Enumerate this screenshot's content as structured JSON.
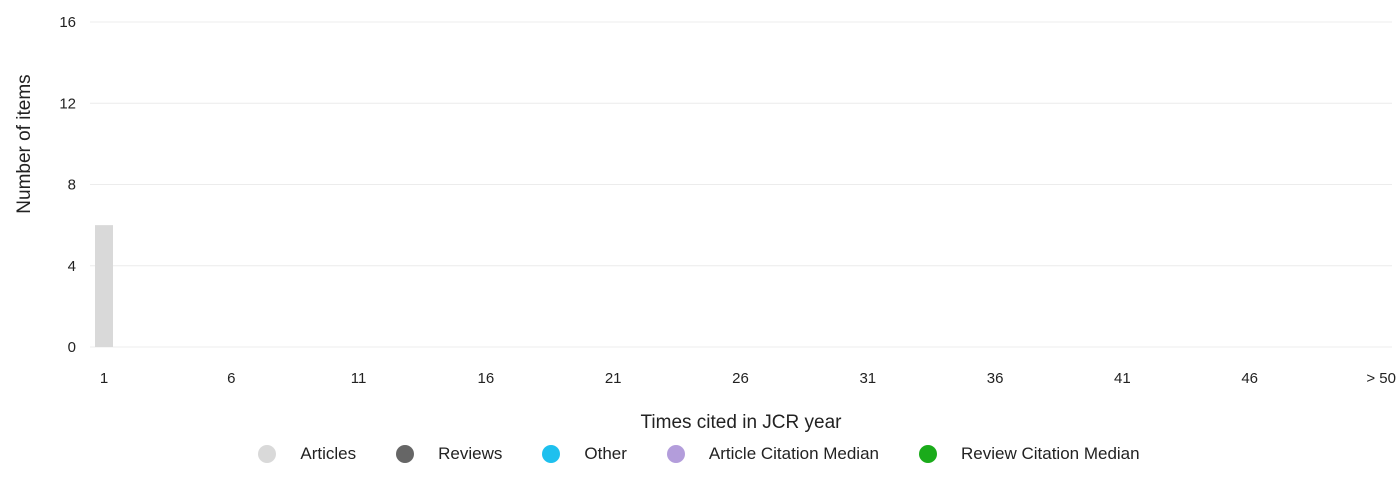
{
  "chart_data": {
    "type": "bar",
    "xlabel": "Times cited in JCR year",
    "ylabel": "Number of items",
    "ylim": [
      0,
      16
    ],
    "y_ticks": [
      0,
      4,
      8,
      12,
      16
    ],
    "categories": [
      "1",
      "2",
      "3",
      "4",
      "5",
      "6",
      "7",
      "8",
      "9",
      "10",
      "11",
      "12",
      "13",
      "14",
      "15",
      "16",
      "17",
      "18",
      "19",
      "20",
      "21",
      "22",
      "23",
      "24",
      "25",
      "26",
      "27",
      "28",
      "29",
      "30",
      "31",
      "32",
      "33",
      "34",
      "35",
      "36",
      "37",
      "38",
      "39",
      "40",
      "41",
      "42",
      "43",
      "44",
      "45",
      "46",
      "47",
      "48",
      "49",
      "50",
      "> 50"
    ],
    "x_tick_labels": [
      "1",
      "6",
      "11",
      "16",
      "21",
      "26",
      "31",
      "36",
      "41",
      "46",
      "> 50"
    ],
    "series": [
      {
        "name": "Articles",
        "color": "#d9d9d9",
        "values": [
          6,
          0,
          0,
          0,
          0,
          0,
          0,
          0,
          0,
          0,
          0,
          0,
          0,
          0,
          0,
          0,
          0,
          0,
          0,
          0,
          0,
          0,
          0,
          0,
          0,
          0,
          0,
          0,
          0,
          0,
          0,
          0,
          0,
          0,
          0,
          0,
          0,
          0,
          0,
          0,
          0,
          0,
          0,
          0,
          0,
          0,
          0,
          0,
          0,
          0,
          0
        ]
      },
      {
        "name": "Reviews",
        "color": "#666666",
        "values": [
          0,
          0,
          0,
          0,
          0,
          0,
          0,
          0,
          0,
          0,
          0,
          0,
          0,
          0,
          0,
          0,
          0,
          0,
          0,
          0,
          0,
          0,
          0,
          0,
          0,
          0,
          0,
          0,
          0,
          0,
          0,
          0,
          0,
          0,
          0,
          0,
          0,
          0,
          0,
          0,
          0,
          0,
          0,
          0,
          0,
          0,
          0,
          0,
          0,
          0,
          0
        ]
      },
      {
        "name": "Other",
        "color": "#1ec0ee",
        "values": [
          0,
          0,
          0,
          0,
          0,
          0,
          0,
          0,
          0,
          0,
          0,
          0,
          0,
          0,
          0,
          0,
          0,
          0,
          0,
          0,
          0,
          0,
          0,
          0,
          0,
          0,
          0,
          0,
          0,
          0,
          0,
          0,
          0,
          0,
          0,
          0,
          0,
          0,
          0,
          0,
          0,
          0,
          0,
          0,
          0,
          0,
          0,
          0,
          0,
          0,
          0
        ]
      }
    ],
    "legend": [
      {
        "label": "Articles",
        "color": "#d9d9d9"
      },
      {
        "label": "Reviews",
        "color": "#666666"
      },
      {
        "label": "Other",
        "color": "#1ec0ee"
      },
      {
        "label": "Article Citation Median",
        "color": "#b39ddb"
      },
      {
        "label": "Review Citation Median",
        "color": "#1aab1a"
      }
    ],
    "legend_position": "bottom",
    "grid": true
  }
}
